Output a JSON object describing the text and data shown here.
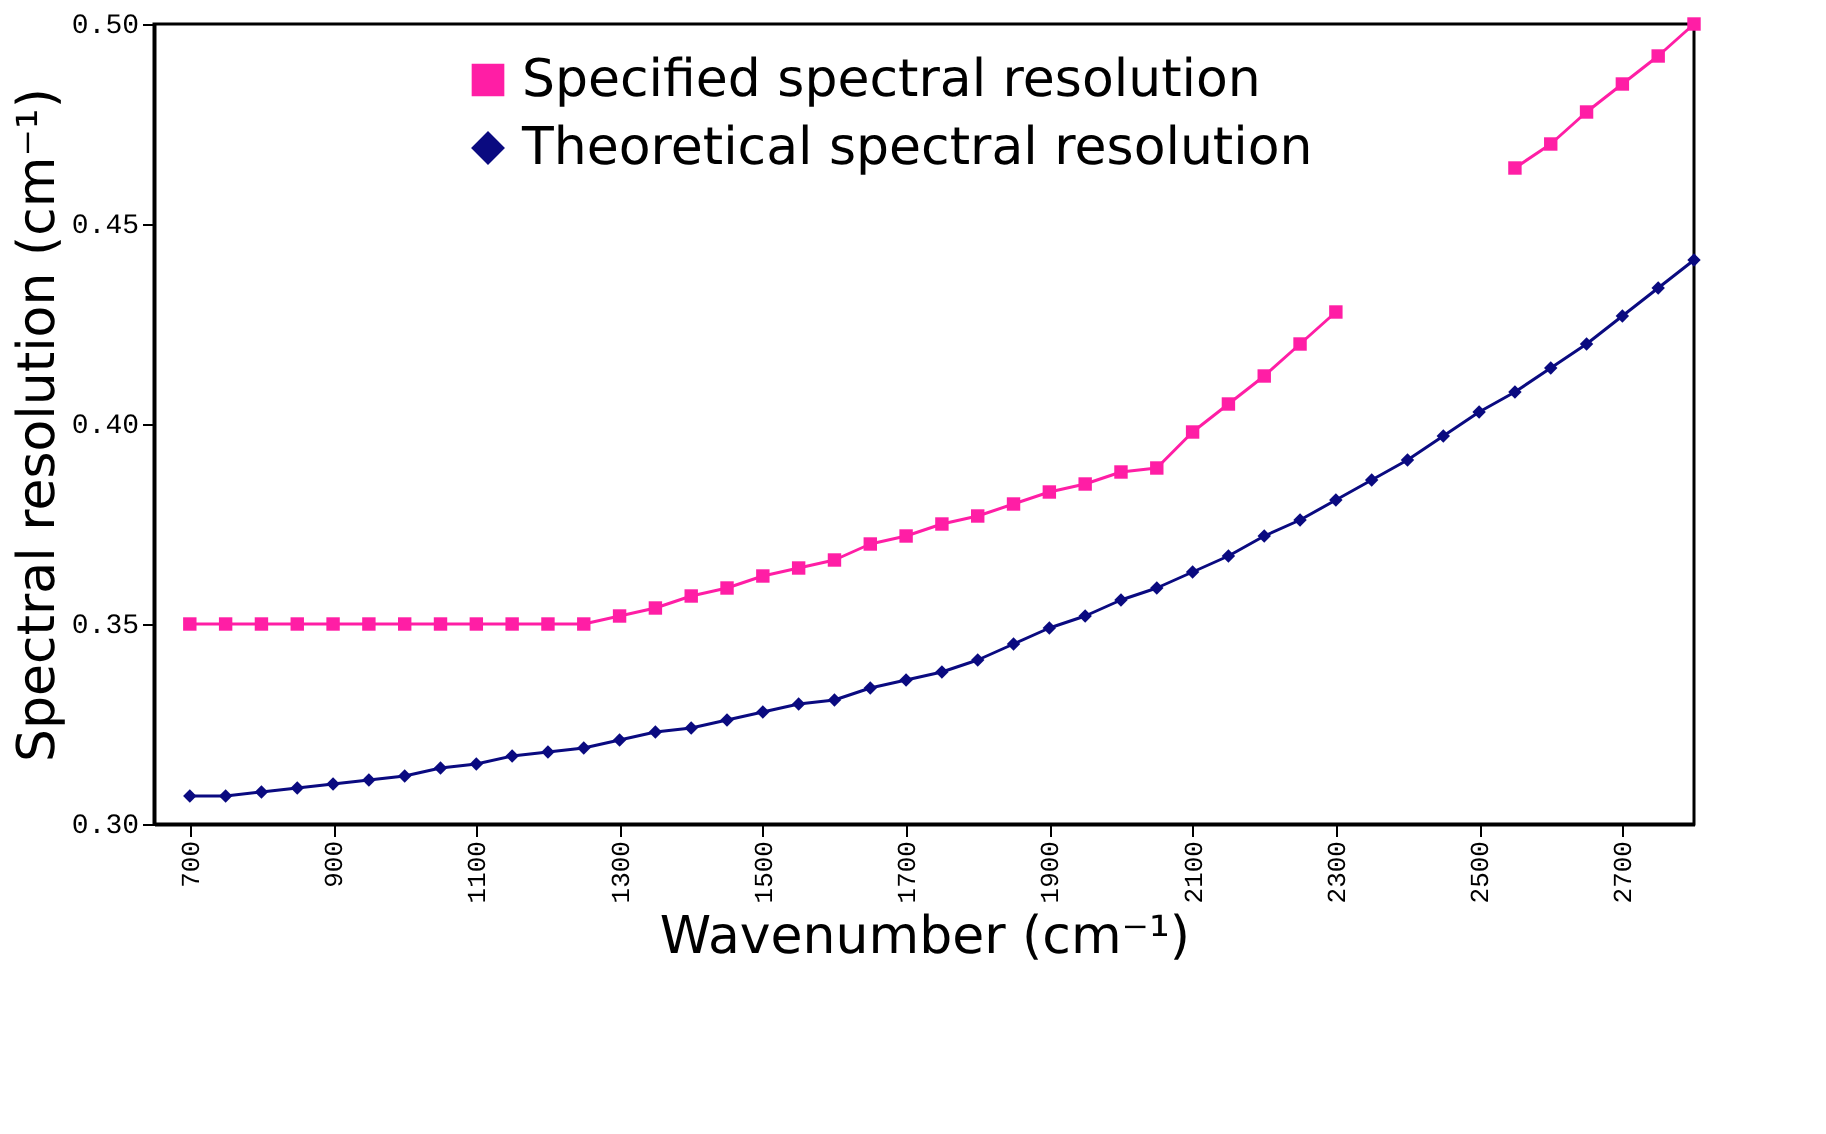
{
  "chart_data": {
    "type": "line",
    "xlabel": "Wavenumber (cm⁻¹)",
    "ylabel": "Spectral resolution (cm⁻¹)",
    "x": [
      700,
      750,
      800,
      850,
      900,
      950,
      1000,
      1050,
      1100,
      1150,
      1200,
      1250,
      1300,
      1350,
      1400,
      1450,
      1500,
      1550,
      1600,
      1650,
      1700,
      1750,
      1800,
      1850,
      1900,
      1950,
      2000,
      2050,
      2100,
      2150,
      2200,
      2250,
      2300,
      2350,
      2400,
      2450,
      2500,
      2550,
      2600,
      2650,
      2700,
      2750,
      2800
    ],
    "series": [
      {
        "name": "Specified spectral resolution",
        "color": "#ff1ea5",
        "marker": "square",
        "values": [
          0.35,
          0.35,
          0.35,
          0.35,
          0.35,
          0.35,
          0.35,
          0.35,
          0.35,
          0.35,
          0.35,
          0.35,
          0.352,
          0.354,
          0.357,
          0.359,
          0.362,
          0.364,
          0.366,
          0.37,
          0.372,
          0.375,
          0.377,
          0.38,
          0.383,
          0.385,
          0.388,
          0.389,
          0.398,
          0.405,
          0.412,
          0.42,
          0.428,
          null,
          null,
          null,
          null,
          0.464,
          0.47,
          0.478,
          0.485,
          0.492,
          0.5
        ]
      },
      {
        "name": "Theoretical spectral resolution",
        "color": "#0a0a80",
        "marker": "diamond",
        "values": [
          0.307,
          0.307,
          0.308,
          0.309,
          0.31,
          0.311,
          0.312,
          0.314,
          0.315,
          0.317,
          0.318,
          0.319,
          0.321,
          0.323,
          0.324,
          0.326,
          0.328,
          0.33,
          0.331,
          0.334,
          0.336,
          0.338,
          0.341,
          0.345,
          0.349,
          0.352,
          0.356,
          0.359,
          0.363,
          0.367,
          0.372,
          0.376,
          0.381,
          0.386,
          0.391,
          0.397,
          0.403,
          0.408,
          0.414,
          0.42,
          0.427,
          0.434,
          0.441
        ]
      }
    ],
    "xlim": [
      650,
      2800
    ],
    "xticks": [
      700,
      900,
      1100,
      1300,
      1500,
      1700,
      1900,
      2100,
      2300,
      2500,
      2700
    ],
    "ylim": [
      0.3,
      0.5
    ],
    "yticks": [
      {
        "value": 0.3,
        "label": "0.30"
      },
      {
        "value": 0.35,
        "label": "0.35"
      },
      {
        "value": 0.4,
        "label": "0.40"
      },
      {
        "value": 0.45,
        "label": "0.45"
      },
      {
        "value": 0.5,
        "label": "0.50"
      }
    ],
    "grid": false,
    "legend": "top",
    "line_style": "solid"
  }
}
